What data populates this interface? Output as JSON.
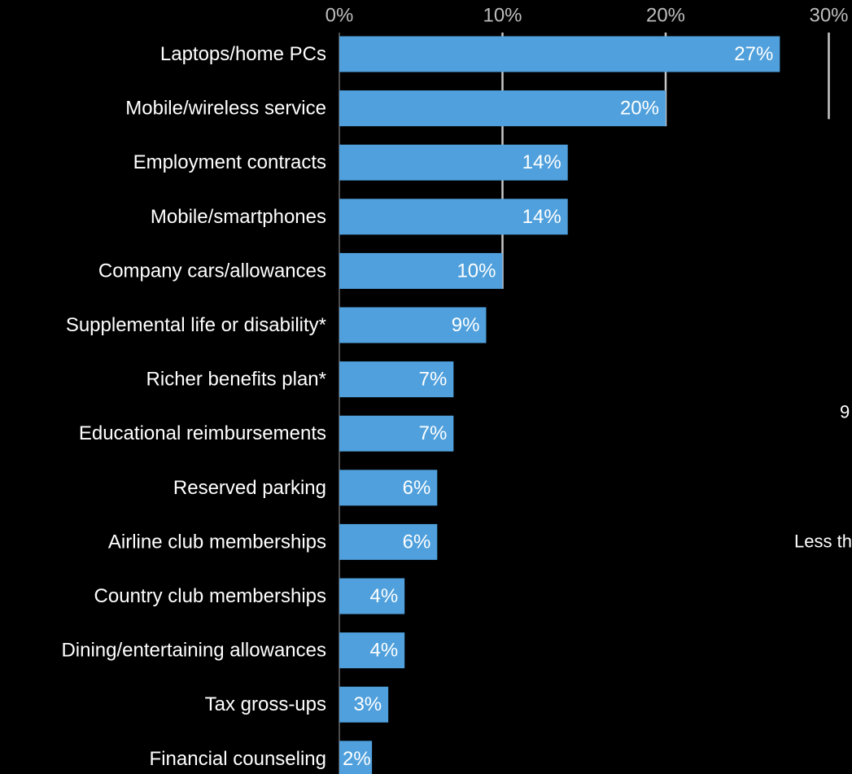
{
  "chart_data": {
    "type": "bar",
    "orientation": "horizontal",
    "categories": [
      "Laptops/home PCs",
      "Mobile/wireless service",
      "Employment contracts",
      "Mobile/smartphones",
      "Company cars/allowances",
      "Supplemental life or disability*",
      "Richer benefits plan*",
      "Educational reimbursements",
      "Reserved parking",
      "Airline club memberships",
      "Country club memberships",
      "Dining/entertaining allowances",
      "Tax gross-ups",
      "Financial counseling"
    ],
    "values": [
      27,
      20,
      14,
      14,
      10,
      9,
      7,
      7,
      6,
      6,
      4,
      4,
      3,
      2
    ],
    "value_labels": [
      "27%",
      "20%",
      "14%",
      "14%",
      "10%",
      "9%",
      "7%",
      "7%",
      "6%",
      "6%",
      "4%",
      "4%",
      "3%",
      "2%"
    ],
    "xlim": [
      0,
      30
    ],
    "x_ticks": [
      0,
      10,
      20,
      30
    ],
    "x_tick_labels": [
      "0%",
      "10%",
      "20%",
      "30%"
    ],
    "axis_position": "top",
    "grid": true,
    "bar_color": "#4fa0dc",
    "background_color": "#000000",
    "text_color": "#ffffff",
    "tick_color": "#bdbdbd",
    "gridline_color": "#c8c8c8",
    "cut_off_annotations": [
      "9",
      "Less th"
    ]
  }
}
